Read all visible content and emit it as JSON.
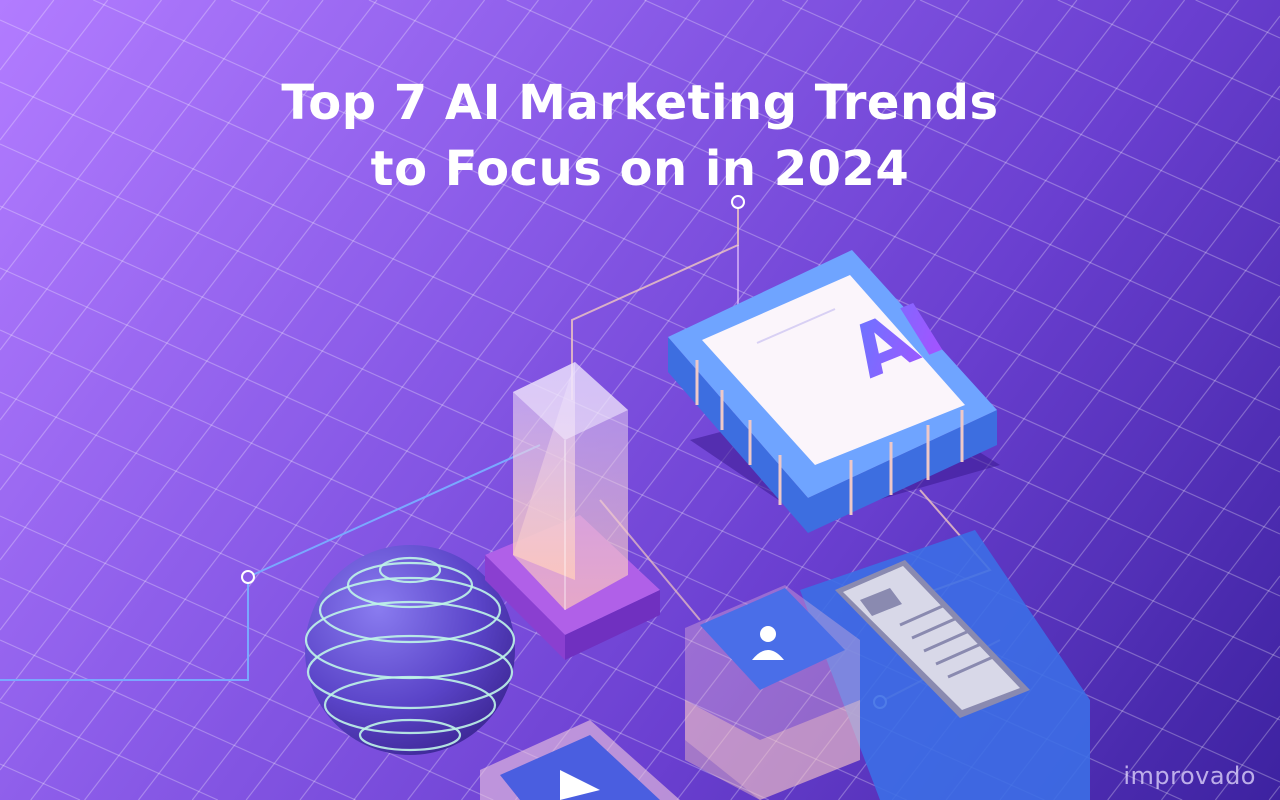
{
  "banner": {
    "title_line1": "Top 7 AI Marketing Trends",
    "title_line2": "to Focus on in 2024",
    "chip_label": "AI",
    "logo": "improvado"
  },
  "colors": {
    "background_start": "#b27cff",
    "background_end": "#3d22a0",
    "chip_blue": "#6fa4ff",
    "chip_side": "#3d6ee0",
    "grid_line": "#ffffff"
  },
  "icons": [
    "ai-chip-icon",
    "bar-tower-icon",
    "globe-sphere-icon",
    "user-card-icon",
    "phone-icon",
    "play-icon"
  ]
}
